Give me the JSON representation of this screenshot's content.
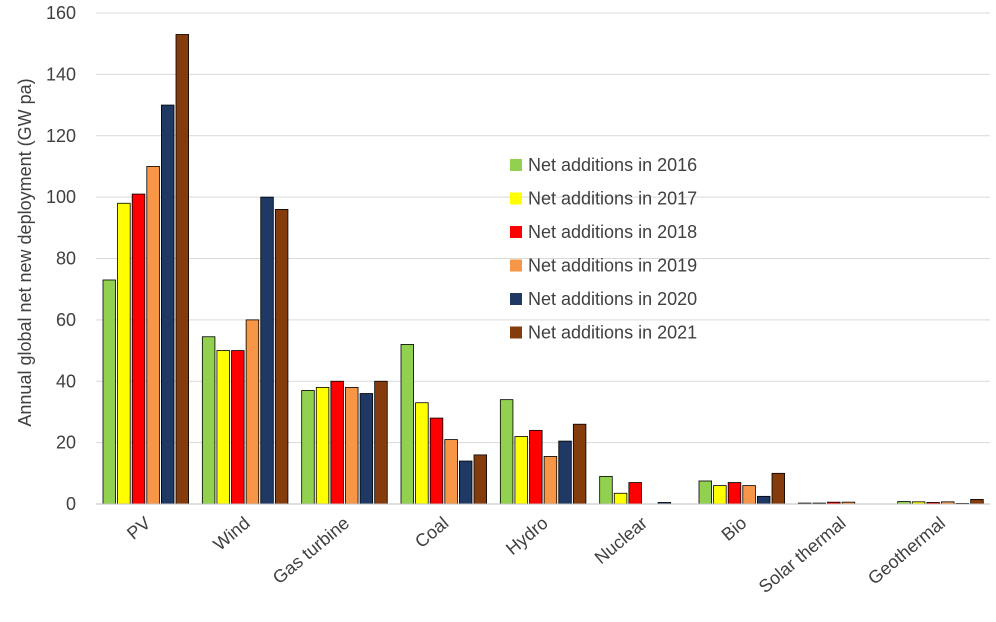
{
  "chart_data": {
    "type": "bar",
    "title": "",
    "xlabel": "",
    "ylabel": "Annual global net new deployment (GW pa)",
    "ylim": [
      0,
      160
    ],
    "yticks": [
      0,
      20,
      40,
      60,
      80,
      100,
      120,
      140,
      160
    ],
    "grid": true,
    "legend_position": "center-right",
    "categories": [
      "PV",
      "Wind",
      "Gas turbine",
      "Coal",
      "Hydro",
      "Nuclear",
      "Bio",
      "Solar thermal",
      "Geothermal"
    ],
    "series": [
      {
        "name": "Net additions in 2016",
        "color": "#92D050",
        "values": [
          73,
          54.5,
          37,
          52,
          34,
          9,
          7.5,
          0.3,
          0.8
        ]
      },
      {
        "name": "Net additions in 2017",
        "color": "#FFFF00",
        "values": [
          98,
          50,
          38,
          33,
          22,
          3.5,
          6,
          0.3,
          0.7
        ]
      },
      {
        "name": "Net additions in 2018",
        "color": "#FF0000",
        "values": [
          101,
          50,
          40,
          28,
          24,
          7,
          7,
          0.6,
          0.5
        ]
      },
      {
        "name": "Net additions in 2019",
        "color": "#F79646",
        "values": [
          110,
          60,
          38,
          21,
          15.5,
          0,
          6,
          0.6,
          0.7
        ]
      },
      {
        "name": "Net additions in 2020",
        "color": "#1F3864",
        "values": [
          130,
          100,
          36,
          14,
          20.5,
          0.5,
          2.5,
          0,
          0.2
        ]
      },
      {
        "name": "Net additions in 2021",
        "color": "#843C0C",
        "values": [
          153,
          96,
          40,
          16,
          26,
          0,
          10,
          0,
          1.5
        ]
      }
    ]
  }
}
